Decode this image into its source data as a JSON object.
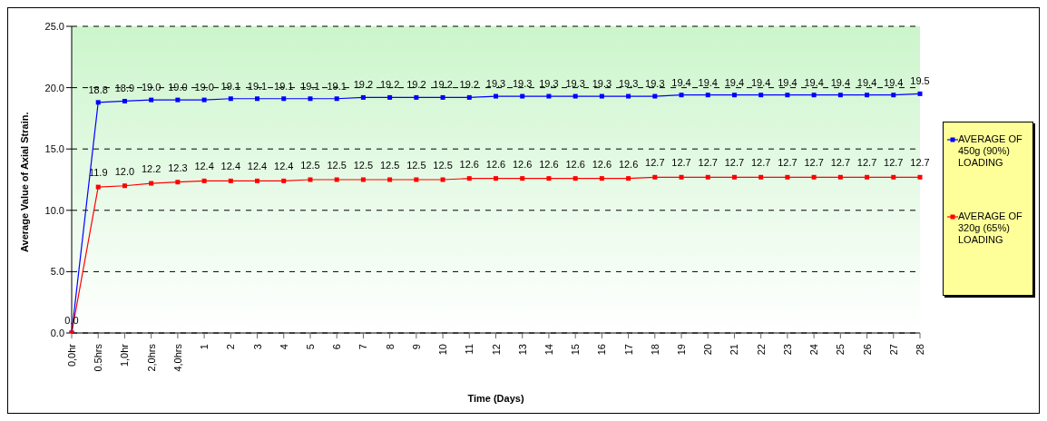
{
  "chart_data": {
    "type": "line",
    "xlabel": "Time (Days)",
    "ylabel": "Average Value of Axial Strain.",
    "categories": [
      "0,0hr",
      "0.5hrs",
      "1,0hr",
      "2,0hrs",
      "4,0hrs",
      "1",
      "2",
      "3",
      "4",
      "5",
      "6",
      "7",
      "8",
      "9",
      "10",
      "11",
      "12",
      "13",
      "14",
      "15",
      "16",
      "17",
      "18",
      "19",
      "20",
      "21",
      "22",
      "23",
      "24",
      "25",
      "26",
      "27",
      "28"
    ],
    "series": [
      {
        "name": "AVERAGE OF 450g (90%) LOADING",
        "color": "#0000ff",
        "values": [
          0.0,
          18.8,
          18.9,
          19.0,
          19.0,
          19.0,
          19.1,
          19.1,
          19.1,
          19.1,
          19.1,
          19.2,
          19.2,
          19.2,
          19.2,
          19.2,
          19.3,
          19.3,
          19.3,
          19.3,
          19.3,
          19.3,
          19.3,
          19.4,
          19.4,
          19.4,
          19.4,
          19.4,
          19.4,
          19.4,
          19.4,
          19.4,
          19.5
        ],
        "value_labels": [
          "0.0",
          "18.8",
          "18.9",
          "19.0",
          "19.0",
          "19.0",
          "19.1",
          "19.1",
          "19.1",
          "19.1",
          "19.1",
          "19.2",
          "19.2",
          "19.2",
          "19.2",
          "19.2",
          "19.3",
          "19.3",
          "19.3",
          "19.3",
          "19.3",
          "19.3",
          "19.3",
          "19.4",
          "19.4",
          "19.4",
          "19.4",
          "19.4",
          "19.4",
          "19.4",
          "19.4",
          "19.4",
          "19.5"
        ]
      },
      {
        "name": "AVERAGE OF 320g (65%) LOADING",
        "color": "#ff0000",
        "values": [
          0.0,
          11.9,
          12.0,
          12.2,
          12.3,
          12.4,
          12.4,
          12.4,
          12.4,
          12.5,
          12.5,
          12.5,
          12.5,
          12.5,
          12.5,
          12.6,
          12.6,
          12.6,
          12.6,
          12.6,
          12.6,
          12.6,
          12.7,
          12.7,
          12.7,
          12.7,
          12.7,
          12.7,
          12.7,
          12.7,
          12.7,
          12.7,
          12.7
        ],
        "value_labels": [
          null,
          "11.9",
          "12.0",
          "12.2",
          "12.3",
          "12.4",
          "12.4",
          "12.4",
          "12.4",
          "12.5",
          "12.5",
          "12.5",
          "12.5",
          "12.5",
          "12.5",
          "12.6",
          "12.6",
          "12.6",
          "12.6",
          "12.6",
          "12.6",
          "12.6",
          "12.7",
          "12.7",
          "12.7",
          "12.7",
          "12.7",
          "12.7",
          "12.7",
          "12.7",
          "12.7",
          "12.7",
          "12.7"
        ]
      }
    ],
    "ylim": [
      0,
      25
    ],
    "yticks": [
      {
        "value": 0,
        "label": "0.0"
      },
      {
        "value": 5,
        "label": "5.0"
      },
      {
        "value": 10,
        "label": "10.0"
      },
      {
        "value": 15,
        "label": "15.0"
      },
      {
        "value": 20,
        "label": "20.0"
      },
      {
        "value": 25,
        "label": "25.0"
      }
    ],
    "grid": "y",
    "legend": "right",
    "marker": "square",
    "line_style": "solid"
  }
}
